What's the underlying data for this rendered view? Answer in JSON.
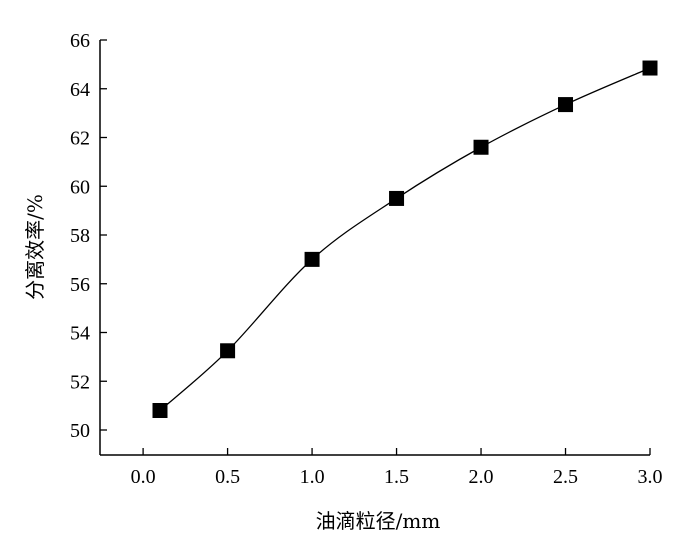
{
  "chart_data": {
    "type": "scatter",
    "xlabel": "油滴粒径/mm",
    "ylabel": "分离效率/%",
    "xlim": [
      -0.2,
      3.0
    ],
    "ylim": [
      49,
      66
    ],
    "x_ticks": [
      "0.0",
      "0.5",
      "1.0",
      "1.5",
      "2.0",
      "2.5",
      "3.0"
    ],
    "y_ticks": [
      "50",
      "52",
      "54",
      "56",
      "58",
      "60",
      "62",
      "64",
      "66"
    ],
    "marker": "square",
    "smooth_line": true,
    "series": [
      {
        "x": [
          0.1,
          0.5,
          1.0,
          1.5,
          2.0,
          2.5,
          3.0
        ],
        "y": [
          50.8,
          53.25,
          57.0,
          59.5,
          61.6,
          63.35,
          64.85
        ]
      }
    ],
    "colors": {
      "marker": "#000000",
      "line": "#000000",
      "axis": "#000000"
    }
  }
}
